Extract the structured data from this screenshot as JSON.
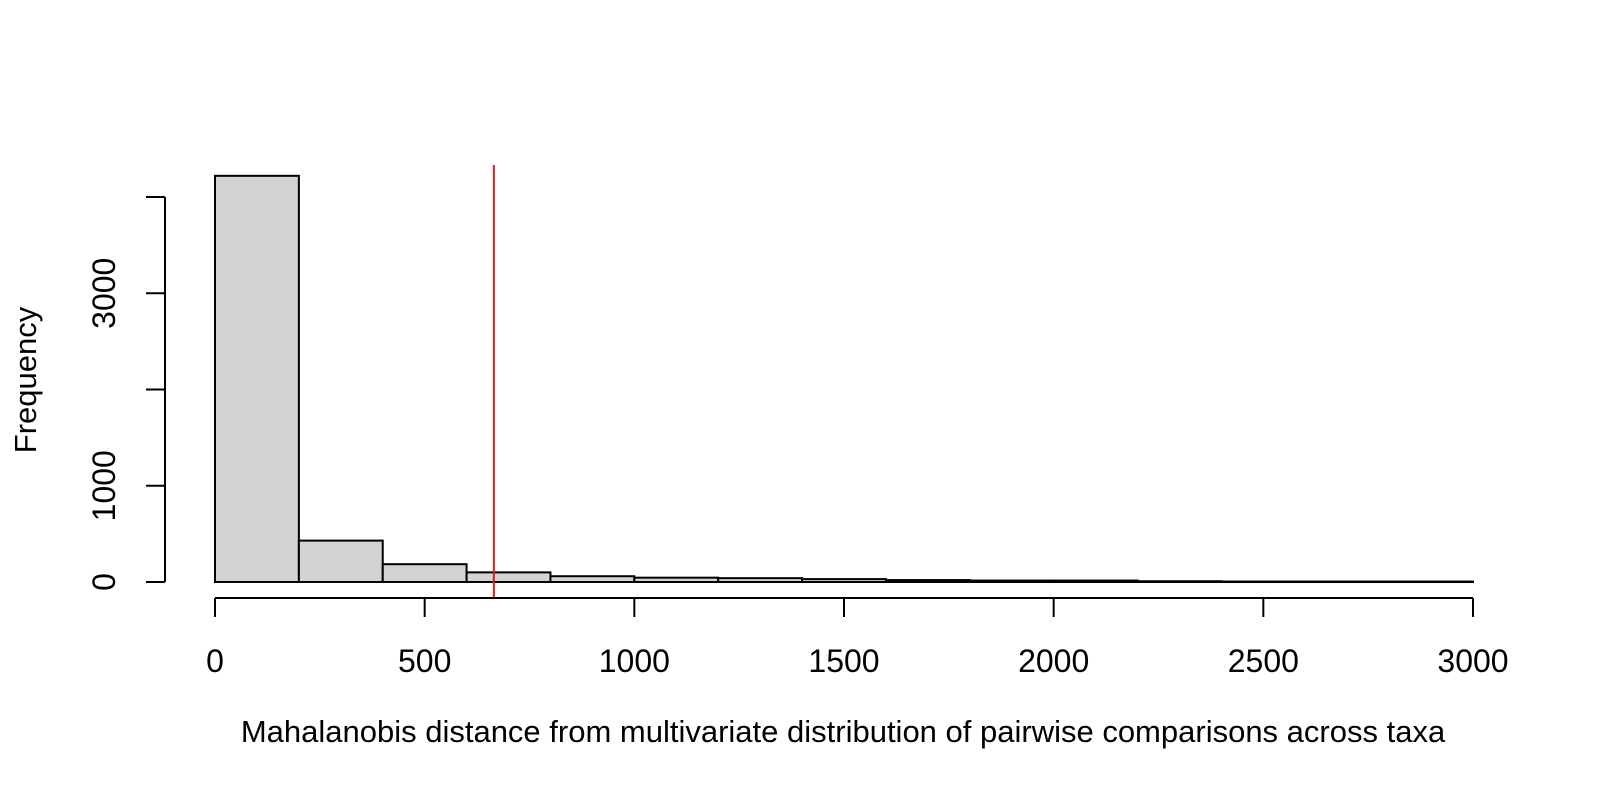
{
  "chart_data": {
    "type": "histogram",
    "title": "",
    "xlabel": "Mahalanobis distance from multivariate distribution of pairwise comparisons across taxa",
    "ylabel": "Frequency",
    "bin_edges": [
      0,
      200,
      400,
      600,
      800,
      1000,
      1200,
      1400,
      1600,
      1800,
      2000,
      2200,
      2400,
      2600,
      2800,
      3000
    ],
    "values": [
      4220,
      430,
      185,
      100,
      60,
      45,
      40,
      30,
      20,
      15,
      15,
      8,
      5,
      5,
      5
    ],
    "xlim": [
      0,
      3000
    ],
    "ylim": [
      0,
      4000
    ],
    "x_ticks": [
      0,
      500,
      1000,
      1500,
      2000,
      2500,
      3000
    ],
    "x_tick_labels": [
      "0",
      "500",
      "1000",
      "1500",
      "2000",
      "2500",
      "3000"
    ],
    "y_ticks": [
      0,
      1000,
      2000,
      3000,
      4000
    ],
    "y_tick_labels": [
      "0",
      "1000",
      "",
      "3000",
      ""
    ],
    "vline": {
      "x": 665,
      "color": "#e31a1c"
    },
    "bar_fill": "#d3d3d3",
    "bar_stroke": "#000000",
    "background": "#ffffff"
  }
}
